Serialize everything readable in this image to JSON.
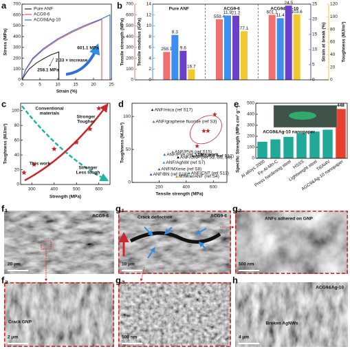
{
  "chart_data": [
    {
      "panel": "a",
      "type": "line",
      "xlabel": "Strain (%)",
      "ylabel": "Stress (MPa)",
      "xlim": [
        0,
        25
      ],
      "xticks": [
        0,
        5,
        10,
        15,
        20,
        25
      ],
      "ylim": [
        0,
        700
      ],
      "yticks": [
        0,
        100,
        200,
        300,
        400,
        500,
        600,
        700
      ],
      "series": [
        {
          "name": "Pure ANF",
          "color": "#222222",
          "x": [
            0,
            1,
            2,
            4,
            6,
            8,
            10.3,
            10.3
          ],
          "values": [
            0,
            55,
            100,
            155,
            195,
            230,
            258.1,
            0
          ]
        },
        {
          "name": "ACG9-6",
          "color": "#e8534f",
          "x": [
            0,
            1,
            3,
            6,
            10,
            14,
            18,
            22.3,
            22.3
          ],
          "values": [
            0,
            90,
            190,
            280,
            370,
            440,
            500,
            559.4,
            0
          ]
        },
        {
          "name": "ACG9&Ag-10",
          "color": "#2f6fd6",
          "x": [
            0,
            1,
            3,
            6,
            10,
            14,
            18,
            22,
            24.6,
            24.6
          ],
          "values": [
            0,
            95,
            200,
            290,
            380,
            450,
            510,
            560,
            601.1,
            0
          ]
        }
      ],
      "annotations": [
        "258.1 MPa",
        "601.1 MPa",
        "2.33 × increase"
      ]
    },
    {
      "panel": "b",
      "type": "multi_axis_bar",
      "categories": [
        "Pure ANF",
        "ACG9-6",
        "ACG9&Ag-10"
      ],
      "ylim": [
        0,
        700
      ],
      "yticks": [
        0,
        100,
        200,
        300,
        400,
        500,
        600,
        700
      ],
      "y2lim": [
        0,
        14
      ],
      "y2ticks": [
        0,
        2,
        4,
        6,
        8,
        10,
        12,
        14
      ],
      "y3lim": [
        0,
        25
      ],
      "y3ticks": [
        0,
        5,
        10,
        15,
        20,
        25
      ],
      "y4lim": [
        0,
        120
      ],
      "y4ticks": [
        0,
        20,
        40,
        60,
        80,
        100,
        120
      ],
      "series": [
        {
          "name": "Tensile strength (MPa)",
          "color": "#f07070",
          "axis": "y",
          "values": [
            258.1,
            559.4,
            601.1
          ]
        },
        {
          "name": "Tensile modulus (GPa)",
          "color": "#3d8ef0",
          "axis": "y2",
          "values": [
            8.3,
            11.9,
            11.4
          ]
        },
        {
          "name": "Strain at break (%)",
          "color": "#6a3fc9",
          "axis": "y3",
          "values": [
            9.6,
            21.2,
            24.5
          ]
        },
        {
          "name": "Toughness (MJ/m³)",
          "color": "#f2c830",
          "axis": "y4",
          "values": [
            16.7,
            77.1,
            103.6
          ]
        }
      ]
    },
    {
      "panel": "c",
      "type": "scatter",
      "xlabel": "Strength (MPa)",
      "ylabel": "Toughness (MJ/m³)",
      "xlim": [
        250,
        650
      ],
      "xticks": [
        300,
        400,
        500,
        600
      ],
      "ylim": [
        0,
        110
      ],
      "yticks": [
        0,
        20,
        40,
        60,
        80,
        100
      ],
      "series": [
        {
          "name": "This work",
          "color": "#c8282d",
          "x": [
            265,
            310,
            400,
            500,
            560,
            600
          ],
          "values": [
            16,
            27,
            48,
            57,
            75,
            103
          ]
        }
      ],
      "annotations": [
        "Conventional",
        "materials",
        "Stronger",
        "Tougher",
        "Stronger",
        "Less tough"
      ]
    },
    {
      "panel": "d",
      "type": "ashby",
      "xlabel": "Tensile strength (MPa)",
      "ylabel": "Toughness (MJ/m³)",
      "xlim": [
        0,
        700
      ],
      "xticks": [
        200,
        400,
        600
      ],
      "ylim": [
        0,
        120
      ],
      "yticks": [
        0,
        50,
        100
      ],
      "series": [
        {
          "name": "This work",
          "color": "#c8282d",
          "x": [
            480,
            530,
            560,
            610
          ],
          "values": [
            55,
            78,
            78,
            103
          ]
        }
      ],
      "points": [
        {
          "label": "ANF/mica (ref S17)",
          "x": 150,
          "y": 110,
          "color": "#333333"
        },
        {
          "label": "ANF/graphene fluoride (ref S3)",
          "x": 160,
          "y": 92,
          "color": "#2a9d3a"
        },
        {
          "label": "ANF/PVA (ref S14)",
          "x": 240,
          "y": 42,
          "color": "#2f6fd6"
        },
        {
          "label": "ANF/PVA (ref S15)",
          "x": 300,
          "y": 46,
          "color": "#777777"
        },
        {
          "label": "ANF/AgNW (ref S7)",
          "x": 235,
          "y": 30,
          "color": "#2aa0c8"
        },
        {
          "label": "ANF/MXene (ref S8)",
          "x": 200,
          "y": 20,
          "color": "#7a3cc8"
        },
        {
          "label": "ANF/GNP (ref S2, S5, S6)",
          "x": 340,
          "y": 38,
          "color": "#111111"
        },
        {
          "label": "ANF/SiO2 (ref S12)",
          "x": 450,
          "y": 40,
          "color": "#333333"
        },
        {
          "label": "ANF/BN (ref S18)",
          "x": 140,
          "y": 12,
          "color": "#7a3cc8"
        },
        {
          "label": "MXene/ANF (ref S4)",
          "x": 330,
          "y": 9,
          "color": "#d08a00"
        },
        {
          "label": "ANF/CNT (ref S13)",
          "x": 420,
          "y": 14,
          "color": "#2a9d3a"
        }
      ],
      "annotations": [
        "This work"
      ]
    },
    {
      "panel": "e",
      "type": "bar",
      "ylabel": "Specific Strength (MPa cm³ g⁻¹)",
      "categories": [
        "Al alloys 2000",
        "Fe-Al-Mn-C",
        "Press hardening steel",
        "HSSS",
        "Lightweight steel",
        "Ti6Al4V",
        "AGC9&Ag-10 nanopaper"
      ],
      "values": [
        150,
        172,
        195,
        228,
        243,
        260,
        448
      ],
      "value_labels": [
        null,
        null,
        null,
        null,
        null,
        null,
        "448"
      ],
      "colors": [
        "#22a99a",
        "#22a99a",
        "#22a99a",
        "#22a99a",
        "#22a99a",
        "#22a99a",
        "#e8402f"
      ],
      "ylim": [
        0,
        500
      ],
      "yticks": [
        0,
        100,
        200,
        300,
        400,
        500
      ],
      "annotations": [
        "ACG9&Ag-10 nanopaper"
      ]
    }
  ],
  "micrographs": [
    {
      "panel": "f₁",
      "labels": [
        "ACG9-6"
      ],
      "scale_bar": "20 μm"
    },
    {
      "panel": "f₂",
      "labels": [
        "Crack GNP"
      ],
      "scale_bar": "2 μm"
    },
    {
      "panel": "g₁",
      "labels": [
        "Crack deflection",
        "ACG9-6"
      ],
      "scale_bar": "10 μm"
    },
    {
      "panel": "g₂",
      "labels": [
        "ANFs adhered on GNP"
      ],
      "scale_bar": "500 nm"
    },
    {
      "panel": "g₃",
      "scale_bar": "500 nm"
    },
    {
      "panel": "h",
      "labels": [
        "ACG9&Ag-10",
        "Broken AgNWs"
      ],
      "scale_bar": "4 μm"
    }
  ]
}
